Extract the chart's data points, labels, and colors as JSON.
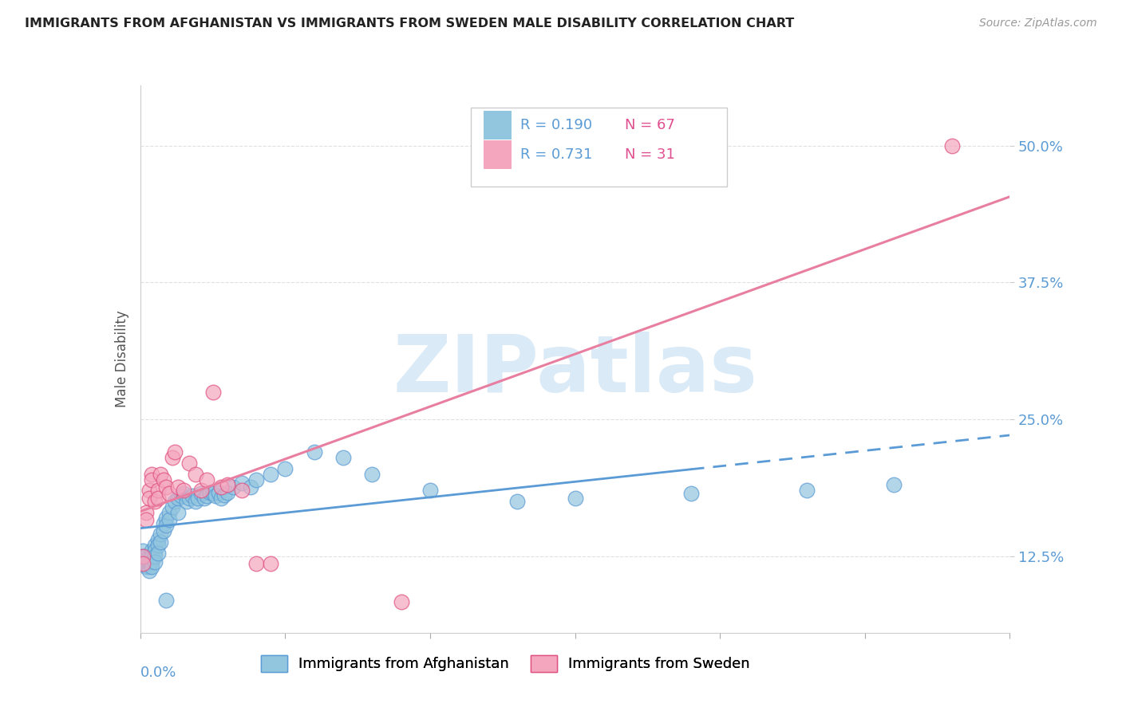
{
  "title": "IMMIGRANTS FROM AFGHANISTAN VS IMMIGRANTS FROM SWEDEN MALE DISABILITY CORRELATION CHART",
  "source": "Source: ZipAtlas.com",
  "ylabel": "Male Disability",
  "ytick_labels": [
    "12.5%",
    "25.0%",
    "37.5%",
    "50.0%"
  ],
  "ytick_values": [
    0.125,
    0.25,
    0.375,
    0.5
  ],
  "xlim": [
    0.0,
    0.3
  ],
  "ylim": [
    0.055,
    0.555
  ],
  "afghanistan_color": "#92c5de",
  "afghanistan_edge": "#5b9bd5",
  "sweden_color": "#f4a6be",
  "sweden_edge": "#e05080",
  "line_afghanistan": "#5b9bd5",
  "line_sweden": "#e87fa0",
  "afghanistan_R": "0.190",
  "afghanistan_N": "67",
  "sweden_R": "0.731",
  "sweden_N": "31",
  "legend_label_bottom_1": "Immigrants from Afghanistan",
  "legend_label_bottom_2": "Immigrants from Sweden",
  "afghanistan_points_x": [
    0.001,
    0.001,
    0.001,
    0.002,
    0.002,
    0.002,
    0.002,
    0.003,
    0.003,
    0.003,
    0.003,
    0.004,
    0.004,
    0.004,
    0.004,
    0.005,
    0.005,
    0.005,
    0.005,
    0.006,
    0.006,
    0.006,
    0.007,
    0.007,
    0.008,
    0.008,
    0.009,
    0.009,
    0.01,
    0.01,
    0.011,
    0.012,
    0.013,
    0.013,
    0.014,
    0.015,
    0.016,
    0.017,
    0.018,
    0.019,
    0.02,
    0.021,
    0.022,
    0.023,
    0.024,
    0.025,
    0.026,
    0.027,
    0.028,
    0.029,
    0.03,
    0.032,
    0.035,
    0.038,
    0.04,
    0.045,
    0.05,
    0.06,
    0.07,
    0.08,
    0.1,
    0.13,
    0.15,
    0.19,
    0.23,
    0.26,
    0.009
  ],
  "afghanistan_points_y": [
    0.13,
    0.125,
    0.12,
    0.125,
    0.122,
    0.118,
    0.115,
    0.12,
    0.118,
    0.115,
    0.112,
    0.13,
    0.125,
    0.12,
    0.115,
    0.135,
    0.13,
    0.125,
    0.12,
    0.14,
    0.135,
    0.128,
    0.145,
    0.138,
    0.155,
    0.148,
    0.16,
    0.153,
    0.165,
    0.158,
    0.17,
    0.175,
    0.178,
    0.165,
    0.18,
    0.182,
    0.175,
    0.178,
    0.18,
    0.175,
    0.178,
    0.182,
    0.178,
    0.18,
    0.183,
    0.182,
    0.18,
    0.183,
    0.178,
    0.181,
    0.183,
    0.188,
    0.192,
    0.188,
    0.195,
    0.2,
    0.205,
    0.22,
    0.215,
    0.2,
    0.185,
    0.175,
    0.178,
    0.182,
    0.185,
    0.19,
    0.085
  ],
  "sweden_points_x": [
    0.001,
    0.001,
    0.002,
    0.002,
    0.003,
    0.003,
    0.004,
    0.004,
    0.005,
    0.006,
    0.006,
    0.007,
    0.008,
    0.009,
    0.01,
    0.011,
    0.012,
    0.013,
    0.015,
    0.017,
    0.019,
    0.021,
    0.023,
    0.025,
    0.028,
    0.03,
    0.035,
    0.04,
    0.045,
    0.09,
    0.28
  ],
  "sweden_points_y": [
    0.125,
    0.118,
    0.165,
    0.158,
    0.185,
    0.178,
    0.2,
    0.195,
    0.175,
    0.185,
    0.178,
    0.2,
    0.195,
    0.188,
    0.182,
    0.215,
    0.22,
    0.188,
    0.185,
    0.21,
    0.2,
    0.185,
    0.195,
    0.275,
    0.188,
    0.19,
    0.185,
    0.118,
    0.118,
    0.083,
    0.5
  ],
  "afghanistan_line_solid_end": 0.19,
  "watermark": "ZIPatlas",
  "watermark_color": "#daeaf7",
  "background_color": "#ffffff",
  "grid_color": "#e0e0e0",
  "text_color_blue": "#5b9bd5",
  "text_color_pink": "#e05080"
}
